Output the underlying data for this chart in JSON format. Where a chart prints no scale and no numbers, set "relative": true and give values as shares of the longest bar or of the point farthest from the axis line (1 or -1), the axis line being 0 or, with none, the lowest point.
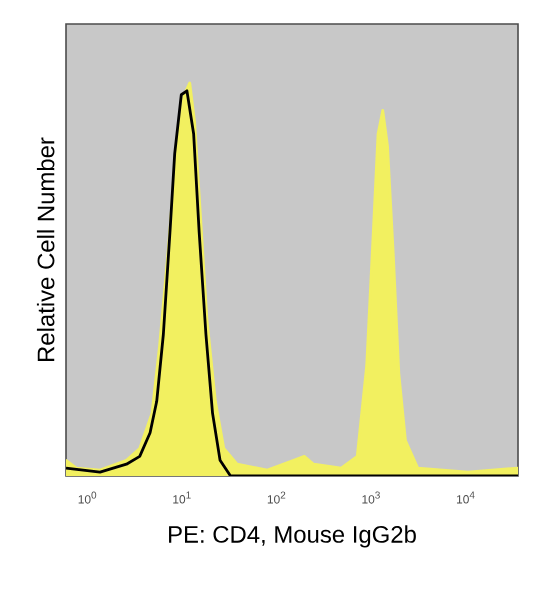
{
  "chart_data": {
    "type": "area",
    "xlabel": "PE: CD4, Mouse IgG2b",
    "ylabel": "Relative Cell Number",
    "relative": true,
    "log": "x",
    "xlim": [
      0.59,
      35480
    ],
    "xticks": [
      {
        "value": 1,
        "label": "10$^{0}$"
      },
      {
        "value": 10,
        "label": "10$^{1}$"
      },
      {
        "value": 100,
        "label": "10$^{2}$"
      },
      {
        "value": 1000,
        "label": "10$^{3}$"
      },
      {
        "value": 10000,
        "label": "10$^{4}$"
      }
    ],
    "series": [
      {
        "color": "#f2f060",
        "x": [
          0.59,
          0.76,
          1.35,
          2.57,
          3.55,
          4.79,
          5.75,
          7.08,
          8.71,
          10.5,
          12.0,
          13.5,
          15.5,
          18.2,
          22.4,
          27.5,
          38.0,
          79.4,
          151,
          195,
          245,
          479,
          708,
          891,
          1047,
          1175,
          1318,
          1479,
          1698,
          1950,
          2291,
          3090,
          10470,
          35480
        ],
        "values": [
          0.04,
          0.02,
          0.015,
          0.04,
          0.07,
          0.16,
          0.33,
          0.57,
          0.84,
          0.97,
          1.0,
          0.9,
          0.67,
          0.4,
          0.19,
          0.07,
          0.03,
          0.015,
          0.04,
          0.05,
          0.03,
          0.02,
          0.05,
          0.28,
          0.62,
          0.87,
          0.93,
          0.84,
          0.57,
          0.26,
          0.09,
          0.02,
          0.01,
          0.02
        ]
      },
      {
        "type": "line",
        "color": "#000000",
        "x": [
          0.59,
          1.35,
          2.57,
          3.55,
          4.57,
          5.37,
          6.31,
          7.41,
          8.32,
          9.77,
          11.2,
          13.2,
          15.1,
          17.8,
          20.9,
          25.1,
          32.4,
          79.4,
          35480
        ],
        "values": [
          0.02,
          0.01,
          0.03,
          0.05,
          0.11,
          0.19,
          0.36,
          0.62,
          0.82,
          0.97,
          0.98,
          0.87,
          0.62,
          0.36,
          0.16,
          0.04,
          0.0,
          0.0,
          0.0
        ]
      }
    ]
  }
}
